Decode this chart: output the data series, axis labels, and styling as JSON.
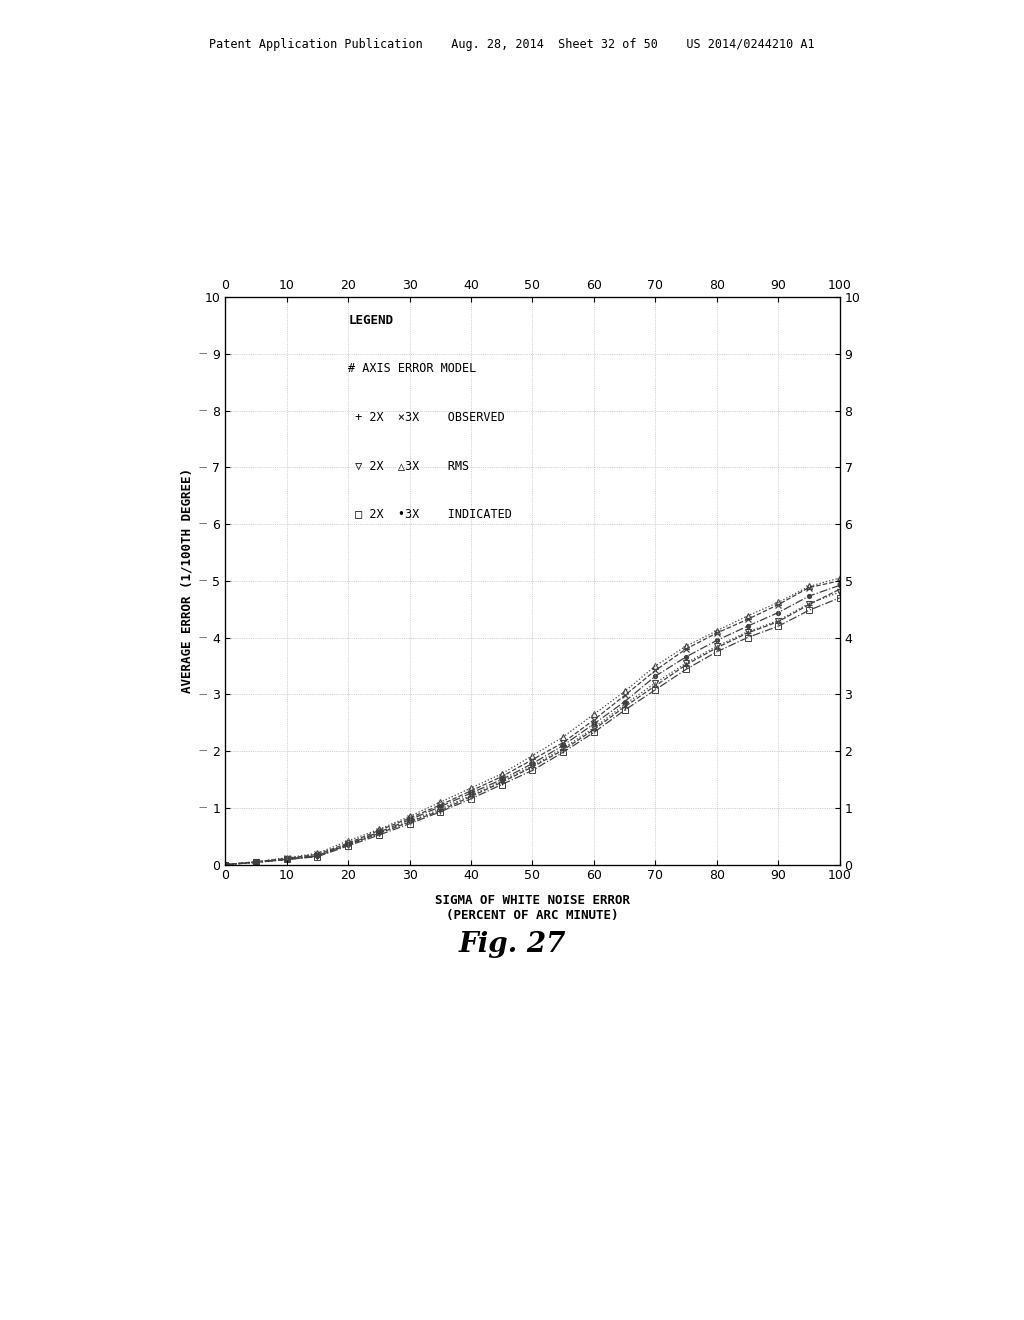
{
  "title": "Fig. 27",
  "xlabel": "SIGMA OF WHITE NOISE ERROR\n(PERCENT OF ARC MINUTE)",
  "ylabel": "AVERAGE ERROR (1/100TH DEGREE)",
  "xlim": [
    0,
    100
  ],
  "ylim": [
    0,
    10
  ],
  "xticks": [
    0,
    10,
    20,
    30,
    40,
    50,
    60,
    70,
    80,
    90,
    100
  ],
  "yticks": [
    0,
    1,
    2,
    3,
    4,
    5,
    6,
    7,
    8,
    9,
    10
  ],
  "background_color": "#ffffff",
  "x": [
    0,
    5,
    10,
    15,
    20,
    25,
    30,
    35,
    40,
    45,
    50,
    55,
    60,
    65,
    70,
    75,
    80,
    85,
    90,
    95,
    100
  ],
  "series": {
    "2x_observed": [
      0.0,
      0.04,
      0.09,
      0.15,
      0.35,
      0.55,
      0.75,
      0.95,
      1.2,
      1.45,
      1.72,
      2.02,
      2.38,
      2.78,
      3.15,
      3.52,
      3.82,
      4.08,
      4.28,
      4.58,
      4.85
    ],
    "3x_observed": [
      0.0,
      0.05,
      0.11,
      0.18,
      0.38,
      0.6,
      0.82,
      1.05,
      1.3,
      1.55,
      1.85,
      2.15,
      2.55,
      2.98,
      3.42,
      3.8,
      4.08,
      4.32,
      4.58,
      4.88,
      5.0
    ],
    "2x_rms": [
      0.0,
      0.04,
      0.09,
      0.15,
      0.35,
      0.55,
      0.76,
      0.98,
      1.22,
      1.47,
      1.74,
      2.05,
      2.41,
      2.82,
      3.2,
      3.55,
      3.85,
      4.1,
      4.3,
      4.6,
      4.8
    ],
    "3x_rms": [
      0.0,
      0.05,
      0.12,
      0.2,
      0.42,
      0.62,
      0.85,
      1.1,
      1.35,
      1.6,
      1.92,
      2.25,
      2.65,
      3.05,
      3.5,
      3.85,
      4.12,
      4.38,
      4.62,
      4.9,
      5.05
    ],
    "2x_indicated": [
      0.0,
      0.04,
      0.09,
      0.14,
      0.33,
      0.52,
      0.72,
      0.93,
      1.16,
      1.41,
      1.66,
      1.98,
      2.33,
      2.72,
      3.08,
      3.44,
      3.75,
      4.0,
      4.2,
      4.48,
      4.7
    ],
    "3x_indicated": [
      0.0,
      0.04,
      0.1,
      0.16,
      0.36,
      0.57,
      0.79,
      1.02,
      1.26,
      1.5,
      1.78,
      2.1,
      2.48,
      2.87,
      3.32,
      3.66,
      3.95,
      4.2,
      4.44,
      4.73,
      4.92
    ]
  },
  "patent_header": "Patent Application Publication    Aug. 28, 2014  Sheet 32 of 50    US 2014/0244210 A1",
  "legend_title": "LEGEND",
  "legend_subtitle": "# AXIS ERROR MODEL",
  "legend_row1": " + 2X  ×3X    OBSERVED",
  "legend_row2": " ▽ 2X  △3X    RMS",
  "legend_row3": " □ 2X  •3X    INDICATED"
}
